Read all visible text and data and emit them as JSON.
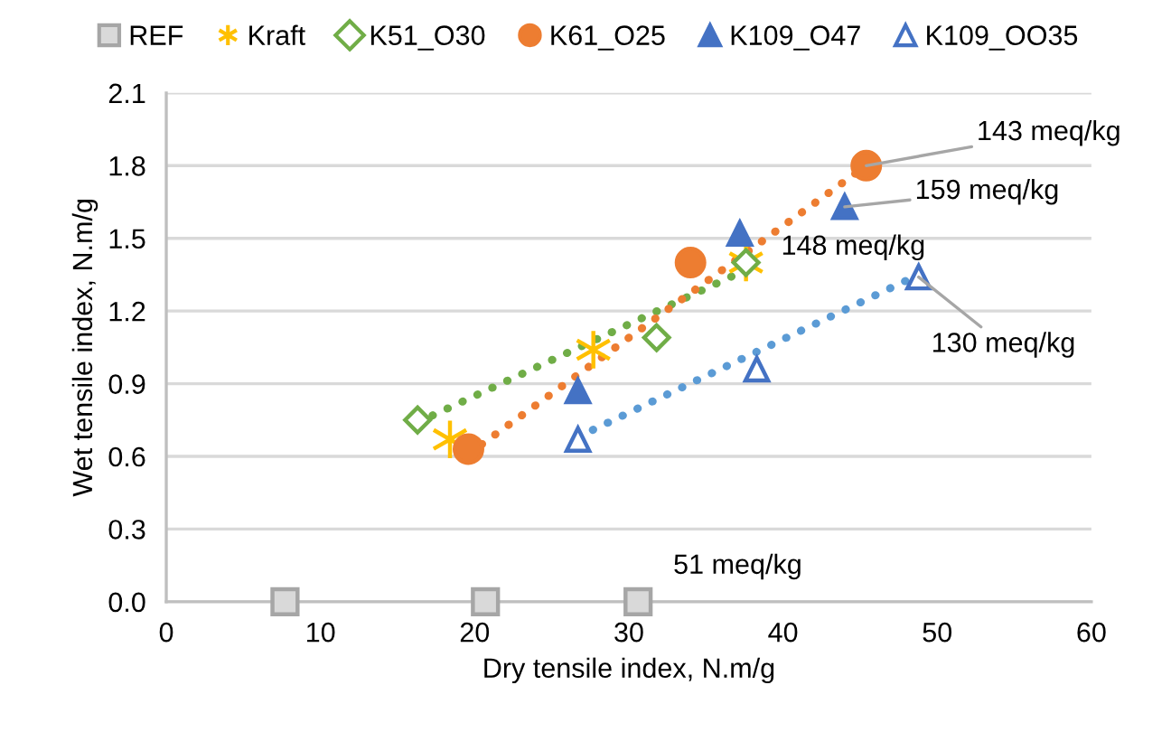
{
  "chart_data": {
    "type": "scatter",
    "xlabel": "Dry tensile index, N.m/g",
    "ylabel": "Wet tensile index, N.m/g",
    "xlim": [
      0,
      60
    ],
    "xticks": [
      0,
      10,
      20,
      30,
      40,
      50,
      60
    ],
    "ylim": [
      0,
      2.1
    ],
    "yticks": [
      {
        "value": 0,
        "label": "0.0"
      },
      {
        "value": 0.3,
        "label": "0.3"
      },
      {
        "value": 0.6,
        "label": "0.6"
      },
      {
        "value": 0.9,
        "label": "0.9"
      },
      {
        "value": 1.2,
        "label": "1.2"
      },
      {
        "value": 1.5,
        "label": "1.5"
      },
      {
        "value": 1.8,
        "label": "1.8"
      },
      {
        "value": 2.1,
        "label": "2.1"
      }
    ],
    "grid": "y",
    "legend": "top",
    "series": [
      {
        "name": "REF",
        "color": "#d9d9d9",
        "marker": "square",
        "x": [
          7.7,
          20.7,
          30.6
        ],
        "values": [
          0,
          0,
          0
        ]
      },
      {
        "name": "Kraft",
        "color": "#ffc000",
        "marker": "cross",
        "x": [
          18.4,
          27.7,
          37.6
        ],
        "values": [
          0.67,
          1.04,
          1.4
        ]
      },
      {
        "name": "K51_O30",
        "color": "#70ad47",
        "marker": "diamond",
        "x": [
          16.3,
          31.8,
          37.6
        ],
        "values": [
          0.75,
          1.09,
          1.4
        ]
      },
      {
        "name": "K61_O25",
        "color": "#ed7d31",
        "marker": "circle",
        "x": [
          19.6,
          34.0,
          45.4
        ],
        "values": [
          0.63,
          1.4,
          1.8
        ]
      },
      {
        "name": "K109_O47",
        "color": "#4472c4",
        "marker": "triangle",
        "x": [
          26.7,
          37.2,
          44.0
        ],
        "values": [
          0.87,
          1.52,
          1.63
        ]
      },
      {
        "name": "K109_OO35",
        "color": "#4472c4",
        "marker": "triangle",
        "x": [
          26.7,
          38.3,
          48.8
        ],
        "values": [
          0.67,
          0.96,
          1.34
        ]
      },
      {
        "type": "line",
        "color": "#70ad47",
        "line_style": "dotted",
        "x": [
          16.3,
          37.6
        ],
        "values": [
          0.74,
          1.37
        ]
      },
      {
        "type": "line",
        "color": "#ed7d31",
        "line_style": "dotted",
        "x": [
          19.6,
          45.4
        ],
        "values": [
          0.61,
          1.8
        ]
      },
      {
        "type": "line",
        "color": "#5b9bd5",
        "line_style": "dotted",
        "x": [
          26.7,
          48.8
        ],
        "values": [
          0.68,
          1.35
        ]
      }
    ],
    "annotations": [
      {
        "text": "143 meq/kg",
        "x": 45.4,
        "y": 1.8
      },
      {
        "text": "159 meq/kg",
        "x": 44.0,
        "y": 1.63
      },
      {
        "text": "148 meq/kg",
        "x": 37.6,
        "y": 1.4
      },
      {
        "text": "130 meq/kg",
        "x": 48.8,
        "y": 1.34
      },
      {
        "text": "51 meq/kg",
        "x": 30.6,
        "y": 0
      }
    ]
  }
}
